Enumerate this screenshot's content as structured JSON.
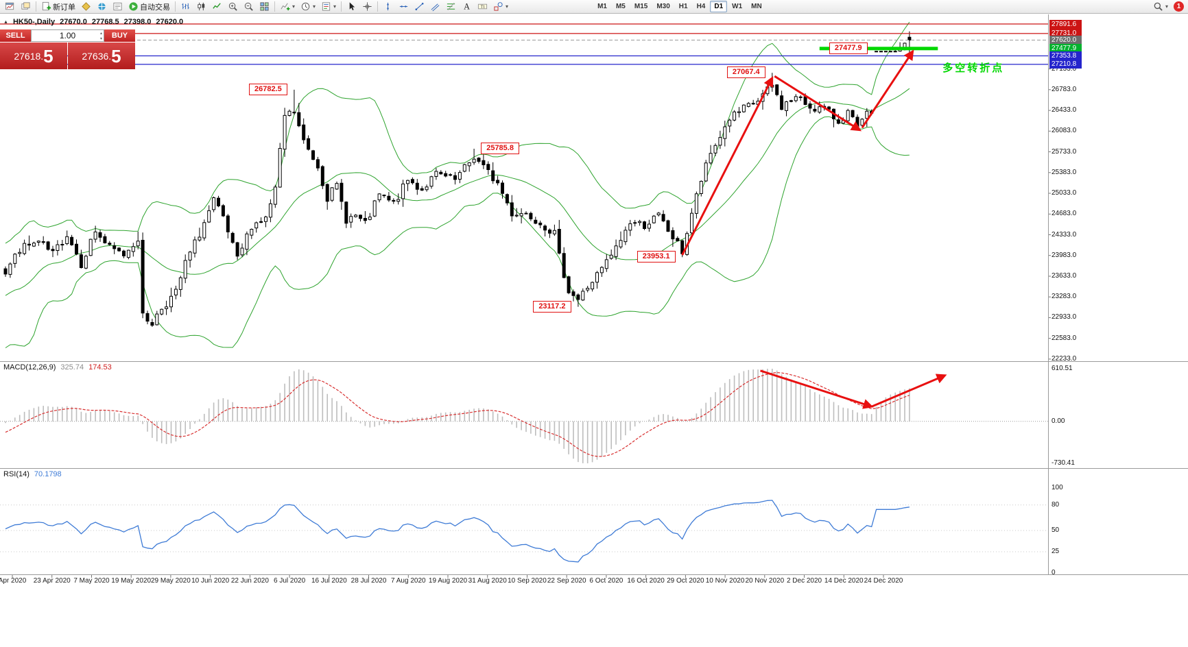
{
  "toolbar": {
    "new_order_label": "新订单",
    "autotrading_label": "自动交易",
    "timeframes": [
      "M1",
      "M5",
      "M15",
      "M30",
      "H1",
      "H4",
      "D1",
      "W1",
      "MN"
    ],
    "active_timeframe": "D1",
    "notification_badge": "1",
    "items": [
      {
        "name": "new-chart",
        "icon": "chart-plus-icon"
      },
      {
        "name": "profiles",
        "icon": "window-icon"
      },
      {
        "name": "sep-a",
        "sep": true
      },
      {
        "name": "new-order",
        "icon": "order-plus-icon",
        "label": "新订单"
      },
      {
        "name": "metaeditor",
        "icon": "diamond-icon"
      },
      {
        "name": "market-watch",
        "icon": "globe-icon"
      },
      {
        "name": "data-window",
        "icon": "list-window-icon"
      },
      {
        "name": "autotrading",
        "icon": "play-icon",
        "label": "自动交易"
      },
      {
        "name": "sep-b",
        "sep": true
      },
      {
        "name": "chart-bars",
        "icon": "bars-icon"
      },
      {
        "name": "chart-candles",
        "icon": "candles-icon"
      },
      {
        "name": "chart-line",
        "icon": "line-icon"
      },
      {
        "name": "zoom-in",
        "icon": "zoom-in-icon"
      },
      {
        "name": "zoom-out",
        "icon": "zoom-out-icon"
      },
      {
        "name": "tile-windows",
        "icon": "grid-icon"
      },
      {
        "name": "sep-c",
        "sep": true
      },
      {
        "name": "indicators",
        "icon": "indicator-icon",
        "dropdown": true
      },
      {
        "name": "periods",
        "icon": "clock-icon",
        "dropdown": true
      },
      {
        "name": "templates",
        "icon": "template-icon",
        "dropdown": true
      },
      {
        "name": "sep-d",
        "sep": true
      },
      {
        "name": "cursor",
        "icon": "cursor-icon"
      },
      {
        "name": "crosshair",
        "icon": "crosshair-icon"
      },
      {
        "name": "sep-e",
        "sep": true
      },
      {
        "name": "vertical-line",
        "icon": "vline-icon"
      },
      {
        "name": "horizontal-line",
        "icon": "hline-icon"
      },
      {
        "name": "trendline",
        "icon": "trendline-icon"
      },
      {
        "name": "channel",
        "icon": "channel-icon"
      },
      {
        "name": "fibonacci",
        "icon": "fibo-icon"
      },
      {
        "name": "text",
        "icon": "text-icon"
      },
      {
        "name": "text-label",
        "icon": "label-icon"
      },
      {
        "name": "arrows-shapes",
        "icon": "shapes-icon",
        "dropdown": true
      }
    ]
  },
  "chart_header": {
    "symbol_period": "HK50-,Daily",
    "open": "27670.0",
    "high": "27768.5",
    "low": "27398.0",
    "close": "27620.0"
  },
  "one_click": {
    "sell_label": "SELL",
    "buy_label": "BUY",
    "volume": "1.00",
    "bid_main": "27618.",
    "bid_big": "5",
    "ask_main": "27636.",
    "ask_big": "5"
  },
  "price_axis": {
    "tags": [
      {
        "label": "27891.6",
        "price": 27891.6,
        "bg": "#cc1414",
        "fg": "#ffffff"
      },
      {
        "label": "27731.0",
        "price": 27731.0,
        "bg": "#cc1414",
        "fg": "#ffffff"
      },
      {
        "label": "27620.0",
        "price": 27620.0,
        "bg": "#6e6e6e",
        "fg": "#ffffff"
      },
      {
        "label": "27477.9",
        "price": 27477.9,
        "bg": "#00b22d",
        "fg": "#ffffff"
      },
      {
        "label": "27353.8",
        "price": 27353.8,
        "bg": "#2525cc",
        "fg": "#ffffff"
      },
      {
        "label": "27210.8",
        "price": 27210.8,
        "bg": "#2525cc",
        "fg": "#ffffff"
      }
    ],
    "gridlines": [
      27133.0,
      26783.0,
      26433.0,
      26083.0,
      25733.0,
      25383.0,
      25033.0,
      24683.0,
      24333.0,
      23983.0,
      23633.0,
      23283.0,
      22933.0,
      22583.0,
      22233.0
    ]
  },
  "time_axis": {
    "labels": [
      "Apr 2020",
      "23 Apr 2020",
      "7 May 2020",
      "19 May 2020",
      "29 May 2020",
      "10 Jun 2020",
      "22 Jun 2020",
      "6 Jul 2020",
      "16 Jul 2020",
      "28 Jul 2020",
      "7 Aug 2020",
      "19 Aug 2020",
      "31 Aug 2020",
      "10 Sep 2020",
      "22 Sep 2020",
      "6 Oct 2020",
      "16 Oct 2020",
      "29 Oct 2020",
      "10 Nov 2020",
      "20 Nov 2020",
      "2 Dec 2020",
      "14 Dec 2020",
      "24 Dec 2020"
    ]
  },
  "macd_panel": {
    "label": "MACD(12,26,9)",
    "value_main": "325.74",
    "value_signal": "174.53",
    "scale_top": "610.51",
    "scale_zero": "0.00",
    "scale_bottom": "-730.41"
  },
  "rsi_panel": {
    "label": "RSI(14)",
    "value": "70.1798",
    "scale": [
      100,
      80,
      50,
      25,
      0
    ]
  },
  "annotations": {
    "price_labels": [
      {
        "text": "26782.5",
        "i": 61,
        "price": 26782.5,
        "side": "left"
      },
      {
        "text": "25785.8",
        "i": 99,
        "price": 25785.8,
        "side": "right"
      },
      {
        "text": "27067.4",
        "i": 162,
        "price": 27067.4,
        "side": "left"
      },
      {
        "text": "23953.1",
        "i": 143,
        "price": 23953.1,
        "side": "left"
      },
      {
        "text": "23117.2",
        "i": 121,
        "price": 23117.2,
        "side": "left"
      }
    ],
    "support_line": {
      "label": "27477.9",
      "price": 27477.9,
      "from_i": 172,
      "to_i": 197
    },
    "pivot_text": {
      "text": "多空转折点",
      "i": 198,
      "price": 27180
    },
    "hlines": [
      {
        "price": 27891.6,
        "color": "#cc1414"
      },
      {
        "price": 27731.0,
        "color": "#cc1414"
      },
      {
        "price": 27353.8,
        "color": "#2525cc"
      },
      {
        "price": 27210.8,
        "color": "#2525cc"
      }
    ],
    "current_price_line": {
      "price": 27620.0
    },
    "trend_arrows": [
      {
        "from": [
          143,
          23990
        ],
        "to": [
          162,
          26980
        ]
      },
      {
        "from": [
          162.5,
          27010
        ],
        "to": [
          180.5,
          26100
        ]
      },
      {
        "from": [
          181,
          26140
        ],
        "to": [
          191.7,
          27430
        ]
      }
    ],
    "macd_arrows": [
      {
        "from": [
          159.5,
          0.02
        ],
        "to": [
          183,
          0.4
        ]
      },
      {
        "from": [
          183,
          0.4
        ],
        "to": [
          198.5,
          0.07
        ]
      }
    ]
  },
  "chart_data": {
    "type": "candlestick",
    "symbol": "HK50",
    "timeframe": "Daily",
    "current_ohlc": {
      "open": 27670.0,
      "high": 27768.5,
      "low": 27398.0,
      "close": 27620.0
    },
    "bid": 27618.5,
    "ask": 27636.5,
    "visible_bars": 192,
    "price_path": [
      [
        -25,
        24600
      ],
      [
        -21,
        22050
      ],
      [
        -17,
        23600
      ],
      [
        -13,
        22300
      ],
      [
        -9,
        24000
      ],
      [
        -5,
        23100
      ],
      [
        -2,
        23900
      ],
      [
        0,
        23700
      ],
      [
        3,
        24100
      ],
      [
        7,
        24200
      ],
      [
        10,
        24000
      ],
      [
        13,
        24350
      ],
      [
        16,
        23850
      ],
      [
        19,
        24400
      ],
      [
        22,
        24100
      ],
      [
        25,
        24000
      ],
      [
        28,
        24280
      ],
      [
        29,
        22950
      ],
      [
        31,
        22850
      ],
      [
        33,
        23100
      ],
      [
        36,
        23350
      ],
      [
        38,
        23850
      ],
      [
        41,
        24350
      ],
      [
        44,
        24900
      ],
      [
        46,
        24600
      ],
      [
        49,
        23900
      ],
      [
        52,
        24500
      ],
      [
        55,
        24600
      ],
      [
        57,
        25100
      ],
      [
        59,
        26340
      ],
      [
        61,
        26400
      ],
      [
        63,
        25900
      ],
      [
        66,
        25500
      ],
      [
        68,
        24970
      ],
      [
        70,
        25150
      ],
      [
        72,
        24600
      ],
      [
        74,
        24650
      ],
      [
        76,
        24500
      ],
      [
        79,
        25000
      ],
      [
        82,
        24850
      ],
      [
        85,
        25250
      ],
      [
        88,
        25100
      ],
      [
        91,
        25350
      ],
      [
        95,
        25250
      ],
      [
        99,
        25650
      ],
      [
        104,
        25200
      ],
      [
        107,
        24700
      ],
      [
        110,
        24700
      ],
      [
        113,
        24550
      ],
      [
        116,
        24350
      ],
      [
        117,
        23950
      ],
      [
        119,
        23400
      ],
      [
        121,
        23240
      ],
      [
        123,
        23450
      ],
      [
        126,
        23750
      ],
      [
        129,
        24100
      ],
      [
        132,
        24550
      ],
      [
        135,
        24500
      ],
      [
        138,
        24650
      ],
      [
        140,
        24400
      ],
      [
        143,
        24050
      ],
      [
        145,
        24700
      ],
      [
        147,
        25250
      ],
      [
        149,
        25700
      ],
      [
        151,
        26000
      ],
      [
        153,
        26300
      ],
      [
        156,
        26450
      ],
      [
        159,
        26600
      ],
      [
        162,
        26850
      ],
      [
        164,
        26500
      ],
      [
        167,
        26650
      ],
      [
        170,
        26500
      ],
      [
        173,
        26450
      ],
      [
        176,
        26250
      ],
      [
        178,
        26400
      ],
      [
        180,
        26120
      ],
      [
        182,
        26350
      ],
      [
        184,
        26500
      ],
      [
        186,
        27000
      ],
      [
        188,
        27350
      ],
      [
        190,
        27550
      ],
      [
        191,
        27620
      ]
    ],
    "key_candles": [
      {
        "i": 61,
        "h": 26782.5
      },
      {
        "i": 99,
        "h": 25785.8
      },
      {
        "i": 121,
        "l": 23117.2
      },
      {
        "i": 143,
        "l": 23953.1
      },
      {
        "i": 162,
        "h": 27067.4
      },
      {
        "i": 191,
        "o": 27670.0,
        "h": 27768.5,
        "l": 27398.0,
        "c": 27620.0
      }
    ],
    "indicators": [
      {
        "name": "Bollinger Bands"
      },
      {
        "name": "MACD",
        "params": [
          12,
          26,
          9
        ],
        "current": [
          325.74,
          174.53
        ],
        "scale": [
          610.51,
          -730.41
        ]
      },
      {
        "name": "RSI",
        "params": [
          14
        ],
        "current": 70.1798
      }
    ]
  },
  "colors": {
    "bull": "#ffffff",
    "bear": "#000000",
    "outline": "#000000",
    "band": "#2da32d",
    "rsi_line": "#3e7bd6",
    "macd_signal": "#d83030",
    "macd_hist": "#bdbdbd",
    "arrow": "#e81010",
    "support": "#00d800",
    "object_red": "#cc1414",
    "object_blue": "#2525cc",
    "sell_red": "#c42020"
  }
}
